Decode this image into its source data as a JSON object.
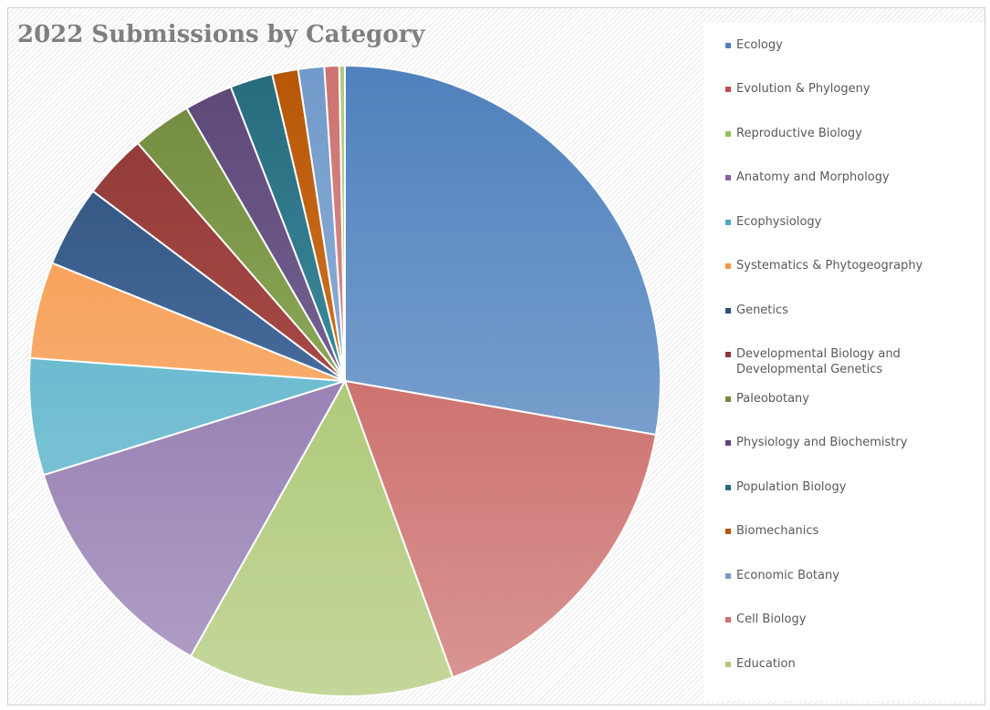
{
  "chart_data": {
    "type": "pie",
    "title": "2022 Submissions by Category",
    "legend_position": "right",
    "start_angle_deg": 0,
    "slices": [
      {
        "label": "Ecology",
        "value": 29.2,
        "color": "#4F81BD",
        "light": "#95B3D7"
      },
      {
        "label": "Evolution & Phylogeny",
        "value": 17.6,
        "color": "#C0504D",
        "light": "#DA9694"
      },
      {
        "label": "Reproductive Biology",
        "value": 14.4,
        "color": "#9BBB59",
        "light": "#C4D79B"
      },
      {
        "label": "Anatomy and Morphology",
        "value": 12.7,
        "color": "#8064A2",
        "light": "#B1A0C7"
      },
      {
        "label": "Ecophysiology",
        "value": 6.3,
        "color": "#4BACC6",
        "light": "#92CDDC"
      },
      {
        "label": "Systematics & Phytogeography",
        "value": 5.2,
        "color": "#F79646",
        "light": "#FABF8F"
      },
      {
        "label": "Genetics",
        "value": 4.4,
        "color": "#2C4D75",
        "light": "#5F89C2"
      },
      {
        "label": "Developmental Biology and Developmental Genetics",
        "value": 3.5,
        "color": "#8C3836",
        "light": "#C25A57"
      },
      {
        "label": "Paleobotany",
        "value": 3.2,
        "color": "#71893F",
        "light": "#A3C46C"
      },
      {
        "label": "Physiology and Biochemistry",
        "value": 2.6,
        "color": "#5C4776",
        "light": "#8D7AAE"
      },
      {
        "label": "Population Biology",
        "value": 2.3,
        "color": "#276A7C",
        "light": "#4FA8BD"
      },
      {
        "label": "Biomechanics",
        "value": 1.4,
        "color": "#B65708",
        "light": "#E98C3A"
      },
      {
        "label": "Economic Botany",
        "value": 1.4,
        "color": "#729ACA",
        "light": "#A5BFE0"
      },
      {
        "label": "Cell Biology",
        "value": 0.8,
        "color": "#CD7371",
        "light": "#E3A3A1"
      },
      {
        "label": "Education",
        "value": 0.3,
        "color": "#AFC97A",
        "light": "#D3E2B3"
      }
    ]
  }
}
